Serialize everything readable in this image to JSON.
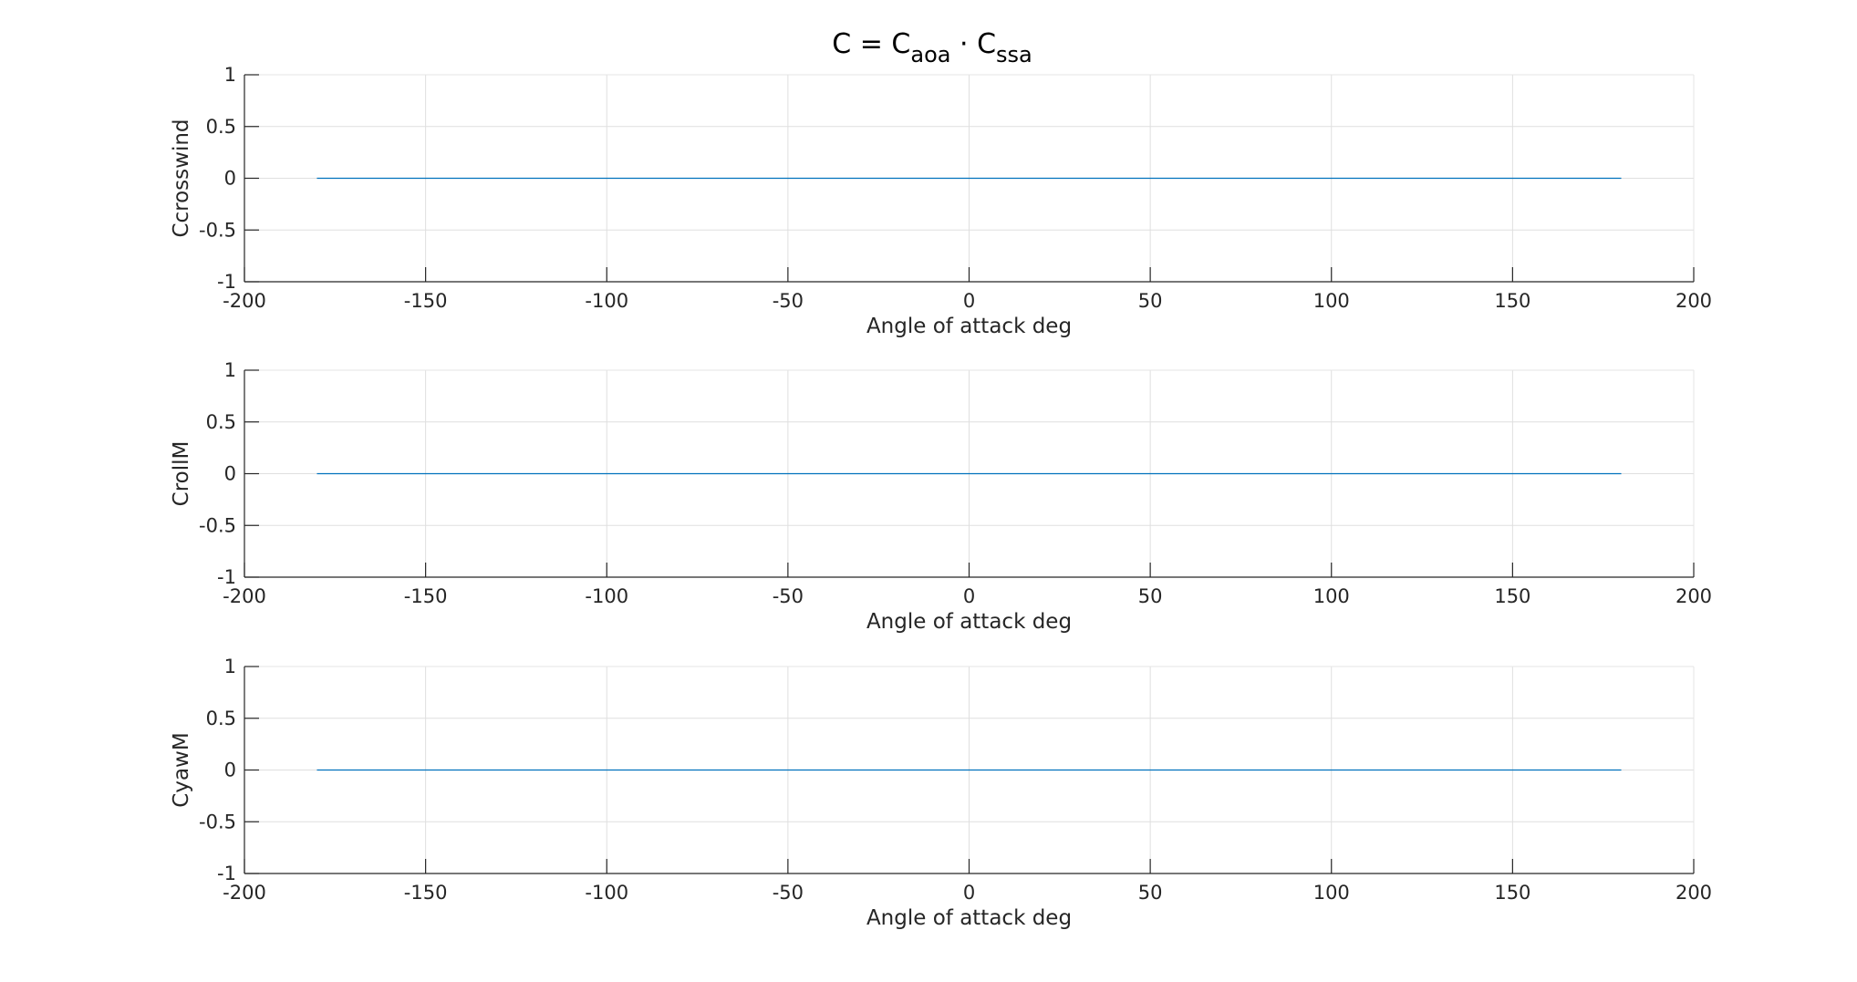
{
  "figure": {
    "title": {
      "base": "C = C",
      "sub1": "aoa",
      "mid": " · C",
      "sub2": "ssa"
    }
  },
  "chart_data": [
    {
      "type": "line",
      "xlabel": "Angle of attack deg",
      "ylabel": "Ccrosswind",
      "xlim": [
        -200,
        200
      ],
      "ylim": [
        -1,
        1
      ],
      "xticks": [
        -200,
        -150,
        -100,
        -50,
        0,
        50,
        100,
        150,
        200
      ],
      "yticks": [
        -1,
        -0.5,
        0,
        0.5,
        1
      ],
      "grid": true,
      "series": [
        {
          "x": [
            -180,
            180
          ],
          "y": [
            0,
            0
          ],
          "color": "#0072BD"
        }
      ]
    },
    {
      "type": "line",
      "xlabel": "Angle of attack deg",
      "ylabel": "CrollM",
      "xlim": [
        -200,
        200
      ],
      "ylim": [
        -1,
        1
      ],
      "xticks": [
        -200,
        -150,
        -100,
        -50,
        0,
        50,
        100,
        150,
        200
      ],
      "yticks": [
        -1,
        -0.5,
        0,
        0.5,
        1
      ],
      "grid": true,
      "series": [
        {
          "x": [
            -180,
            180
          ],
          "y": [
            0,
            0
          ],
          "color": "#0072BD"
        }
      ]
    },
    {
      "type": "line",
      "xlabel": "Angle of attack deg",
      "ylabel": "CyawM",
      "xlim": [
        -200,
        200
      ],
      "ylim": [
        -1,
        1
      ],
      "xticks": [
        -200,
        -150,
        -100,
        -50,
        0,
        50,
        100,
        150,
        200
      ],
      "yticks": [
        -1,
        -0.5,
        0,
        0.5,
        1
      ],
      "grid": true,
      "series": [
        {
          "x": [
            -180,
            180
          ],
          "y": [
            0,
            0
          ],
          "color": "#0072BD"
        }
      ]
    }
  ]
}
